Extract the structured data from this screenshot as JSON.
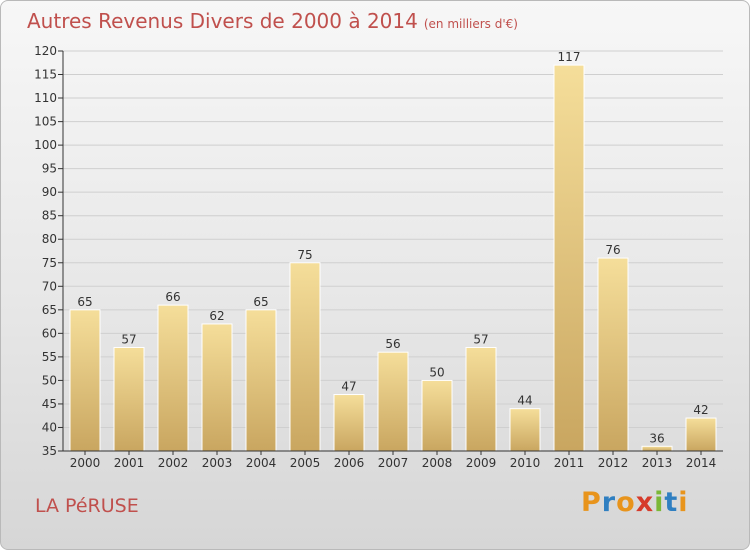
{
  "title": "Autres Revenus Divers de 2000 à 2014",
  "subtitle": "(en milliers d'€)",
  "location": "LA PéRUSE",
  "brand": {
    "text": "Proxiti",
    "colors": [
      "#e8941c",
      "#2f7fc1",
      "#e8941c",
      "#d63b2b",
      "#7bb837",
      "#2f7fc1",
      "#e8941c"
    ]
  },
  "colors": {
    "title": "#c0504d",
    "bar_top": "#f5de9a",
    "bar_bottom": "#c9a660",
    "axis": "#333333"
  },
  "chart_data": {
    "type": "bar",
    "categories": [
      "2000",
      "2001",
      "2002",
      "2003",
      "2004",
      "2005",
      "2006",
      "2007",
      "2008",
      "2009",
      "2010",
      "2011",
      "2012",
      "2013",
      "2014"
    ],
    "values": [
      65,
      57,
      66,
      62,
      65,
      75,
      47,
      56,
      50,
      57,
      44,
      117,
      76,
      36,
      42
    ],
    "ylim": [
      35,
      120
    ],
    "yticks": [
      35,
      40,
      45,
      50,
      55,
      60,
      65,
      70,
      75,
      80,
      85,
      90,
      95,
      100,
      105,
      110,
      115,
      120
    ],
    "grid": true,
    "legend": "none",
    "data_labels": true
  }
}
